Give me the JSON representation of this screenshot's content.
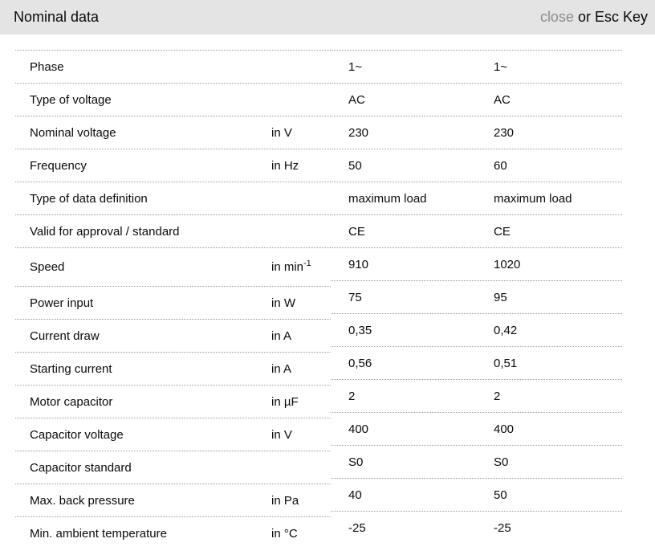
{
  "header": {
    "title": "Nominal data",
    "close_label": "close",
    "close_suffix": "or Esc Key"
  },
  "colors": {
    "header_bg": "#e4e4e4",
    "close_link": "#8c8c8c",
    "divider": "#9e9e9e",
    "text": "#0a0a0a"
  },
  "table": {
    "rows": [
      {
        "label": "Phase",
        "unit": "",
        "values": [
          "1~",
          "1~"
        ]
      },
      {
        "label": "Type of voltage",
        "unit": "",
        "values": [
          "AC",
          "AC"
        ]
      },
      {
        "label": "Nominal voltage",
        "unit": "in V",
        "values": [
          "230",
          "230"
        ]
      },
      {
        "label": "Frequency",
        "unit": "in Hz",
        "values": [
          "50",
          "60"
        ]
      },
      {
        "label": "Type of data definition",
        "unit": "",
        "values": [
          "maximum load",
          "maximum load"
        ]
      },
      {
        "label": "Valid for approval / standard",
        "unit": "",
        "values": [
          "CE",
          "CE"
        ]
      },
      {
        "label": "Speed",
        "unit": "in min",
        "unit_sup": "-1",
        "values": [
          "910",
          "1020"
        ]
      },
      {
        "label": "Power input",
        "unit": "in W",
        "values": [
          "75",
          "95"
        ]
      },
      {
        "label": "Current draw",
        "unit": "in A",
        "values": [
          "0,35",
          "0,42"
        ]
      },
      {
        "label": "Starting current",
        "unit": "in A",
        "values": [
          "0,56",
          "0,51"
        ]
      },
      {
        "label": "Motor capacitor",
        "unit": "in µF",
        "values": [
          "2",
          "2"
        ]
      },
      {
        "label": "Capacitor voltage",
        "unit": "in V",
        "values": [
          "400",
          "400"
        ]
      },
      {
        "label": "Capacitor standard",
        "unit": "",
        "values": [
          "S0",
          "S0"
        ]
      },
      {
        "label": "Max. back pressure",
        "unit": "in Pa",
        "values": [
          "40",
          "50"
        ]
      },
      {
        "label": "Min. ambient temperature",
        "unit": "in °C",
        "values": [
          "-25",
          "-25"
        ]
      }
    ]
  }
}
